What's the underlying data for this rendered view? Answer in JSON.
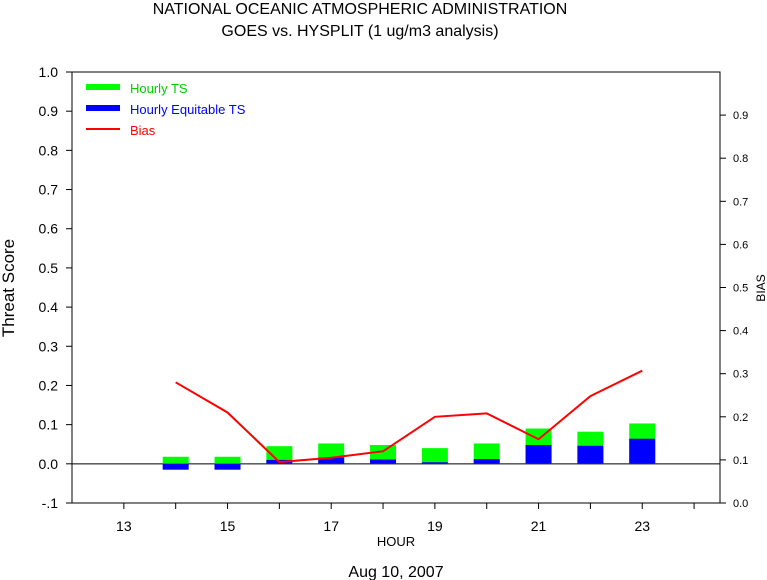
{
  "chart_data": {
    "type": "bar",
    "title": "NATIONAL OCEANIC ATMOSPHERIC ADMINISTRATION",
    "subtitle": "GOES vs. HYSPLIT  (1 ug/m3 analysis)",
    "xlabel": "HOUR",
    "ylabel": "Threat Score",
    "y2label": "BIAS",
    "date_label": "Aug 10, 2007",
    "xlim": [
      12,
      24.5
    ],
    "ylim": [
      -0.1,
      1.0
    ],
    "y2lim": [
      0.0,
      1.0
    ],
    "x_ticks": [
      13,
      15,
      17,
      19,
      21,
      23
    ],
    "y_ticks": [
      "-.1",
      "0.0",
      "0.1",
      "0.2",
      "0.3",
      "0.4",
      "0.5",
      "0.6",
      "0.7",
      "0.8",
      "0.9",
      "1.0"
    ],
    "y2_ticks": [
      "0.0",
      "0.1",
      "0.2",
      "0.3",
      "0.4",
      "0.5",
      "0.6",
      "0.7",
      "0.8",
      "0.9"
    ],
    "x": [
      14,
      15,
      16,
      17,
      18,
      19,
      20,
      21,
      22,
      23
    ],
    "series": [
      {
        "name": "Hourly TS",
        "type": "bar",
        "axis": "left",
        "color": "#00ff00",
        "values": [
          0.018,
          0.018,
          0.045,
          0.052,
          0.048,
          0.04,
          0.052,
          0.09,
          0.082,
          0.103
        ]
      },
      {
        "name": "Hourly Equitable TS",
        "type": "bar",
        "axis": "left",
        "color": "#0000ff",
        "values": [
          -0.015,
          -0.015,
          0.01,
          0.016,
          0.011,
          0.004,
          0.012,
          0.048,
          0.046,
          0.064
        ]
      },
      {
        "name": "Bias",
        "type": "line",
        "axis": "right",
        "color": "#ff0000",
        "values": [
          0.28,
          0.21,
          0.095,
          0.105,
          0.12,
          0.2,
          0.208,
          0.148,
          0.248,
          0.307
        ]
      }
    ],
    "legend_position": "top-left",
    "grid": false
  }
}
